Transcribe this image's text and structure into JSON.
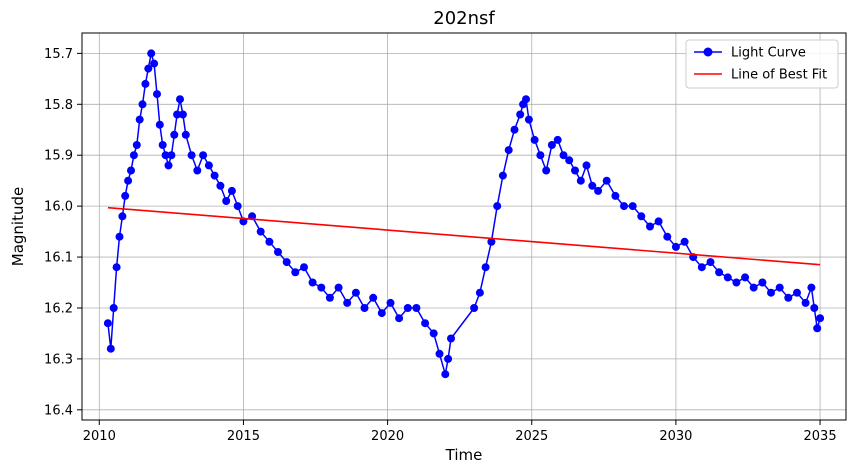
{
  "chart_data": {
    "type": "line",
    "title": "202nsf",
    "xlabel": "Time",
    "ylabel": "Magnitude",
    "xlim": [
      2009.4,
      2035.9
    ],
    "ylim": [
      16.42,
      15.66
    ],
    "y_inverted": true,
    "x_ticks": [
      2010,
      2015,
      2020,
      2025,
      2030,
      2035
    ],
    "y_ticks": [
      15.7,
      15.8,
      15.9,
      16.0,
      16.1,
      16.2,
      16.3,
      16.4
    ],
    "x_tick_labels": [
      "2010",
      "2015",
      "2020",
      "2025",
      "2030",
      "2035"
    ],
    "y_tick_labels": [
      "15.7",
      "15.8",
      "15.9",
      "16.0",
      "16.1",
      "16.2",
      "16.3",
      "16.4"
    ],
    "grid": true,
    "legend_position": "top-right",
    "series": [
      {
        "name": "Light Curve",
        "color": "#0000ff",
        "marker": "circle",
        "x": [
          2010.3,
          2010.4,
          2010.5,
          2010.6,
          2010.7,
          2010.8,
          2010.9,
          2011.0,
          2011.1,
          2011.2,
          2011.3,
          2011.4,
          2011.5,
          2011.6,
          2011.7,
          2011.8,
          2011.9,
          2012.0,
          2012.1,
          2012.2,
          2012.3,
          2012.4,
          2012.5,
          2012.6,
          2012.7,
          2012.8,
          2012.9,
          2013.0,
          2013.2,
          2013.4,
          2013.6,
          2013.8,
          2014.0,
          2014.2,
          2014.4,
          2014.6,
          2014.8,
          2015.0,
          2015.3,
          2015.6,
          2015.9,
          2016.2,
          2016.5,
          2016.8,
          2017.1,
          2017.4,
          2017.7,
          2018.0,
          2018.3,
          2018.6,
          2018.9,
          2019.2,
          2019.5,
          2019.8,
          2020.1,
          2020.4,
          2020.7,
          2021.0,
          2021.3,
          2021.6,
          2021.8,
          2022.0,
          2022.1,
          2022.2,
          2023.0,
          2023.2,
          2023.4,
          2023.6,
          2023.8,
          2024.0,
          2024.2,
          2024.4,
          2024.6,
          2024.7,
          2024.8,
          2024.9,
          2025.1,
          2025.3,
          2025.5,
          2025.7,
          2025.9,
          2026.1,
          2026.3,
          2026.5,
          2026.7,
          2026.9,
          2027.1,
          2027.3,
          2027.6,
          2027.9,
          2028.2,
          2028.5,
          2028.8,
          2029.1,
          2029.4,
          2029.7,
          2030.0,
          2030.3,
          2030.6,
          2030.9,
          2031.2,
          2031.5,
          2031.8,
          2032.1,
          2032.4,
          2032.7,
          2033.0,
          2033.3,
          2033.6,
          2033.9,
          2034.2,
          2034.5,
          2034.7,
          2034.8,
          2034.9,
          2035.0
        ],
        "y": [
          16.23,
          16.28,
          16.2,
          16.12,
          16.06,
          16.02,
          15.98,
          15.95,
          15.93,
          15.9,
          15.88,
          15.83,
          15.8,
          15.76,
          15.73,
          15.7,
          15.72,
          15.78,
          15.84,
          15.88,
          15.9,
          15.92,
          15.9,
          15.86,
          15.82,
          15.79,
          15.82,
          15.86,
          15.9,
          15.93,
          15.9,
          15.92,
          15.94,
          15.96,
          15.99,
          15.97,
          16.0,
          16.03,
          16.02,
          16.05,
          16.07,
          16.09,
          16.11,
          16.13,
          16.12,
          16.15,
          16.16,
          16.18,
          16.16,
          16.19,
          16.17,
          16.2,
          16.18,
          16.21,
          16.19,
          16.22,
          16.2,
          16.2,
          16.23,
          16.25,
          16.29,
          16.33,
          16.3,
          16.26,
          16.2,
          16.17,
          16.12,
          16.07,
          16.0,
          15.94,
          15.89,
          15.85,
          15.82,
          15.8,
          15.79,
          15.83,
          15.87,
          15.9,
          15.93,
          15.88,
          15.87,
          15.9,
          15.91,
          15.93,
          15.95,
          15.92,
          15.96,
          15.97,
          15.95,
          15.98,
          16.0,
          16.0,
          16.02,
          16.04,
          16.03,
          16.06,
          16.08,
          16.07,
          16.1,
          16.12,
          16.11,
          16.13,
          16.14,
          16.15,
          16.14,
          16.16,
          16.15,
          16.17,
          16.16,
          16.18,
          16.17,
          16.19,
          16.16,
          16.2,
          16.24,
          16.22
        ]
      },
      {
        "name": "Line of Best Fit",
        "color": "#ff0000",
        "x": [
          2010.3,
          2035.0
        ],
        "y": [
          16.003,
          16.115
        ]
      }
    ]
  }
}
